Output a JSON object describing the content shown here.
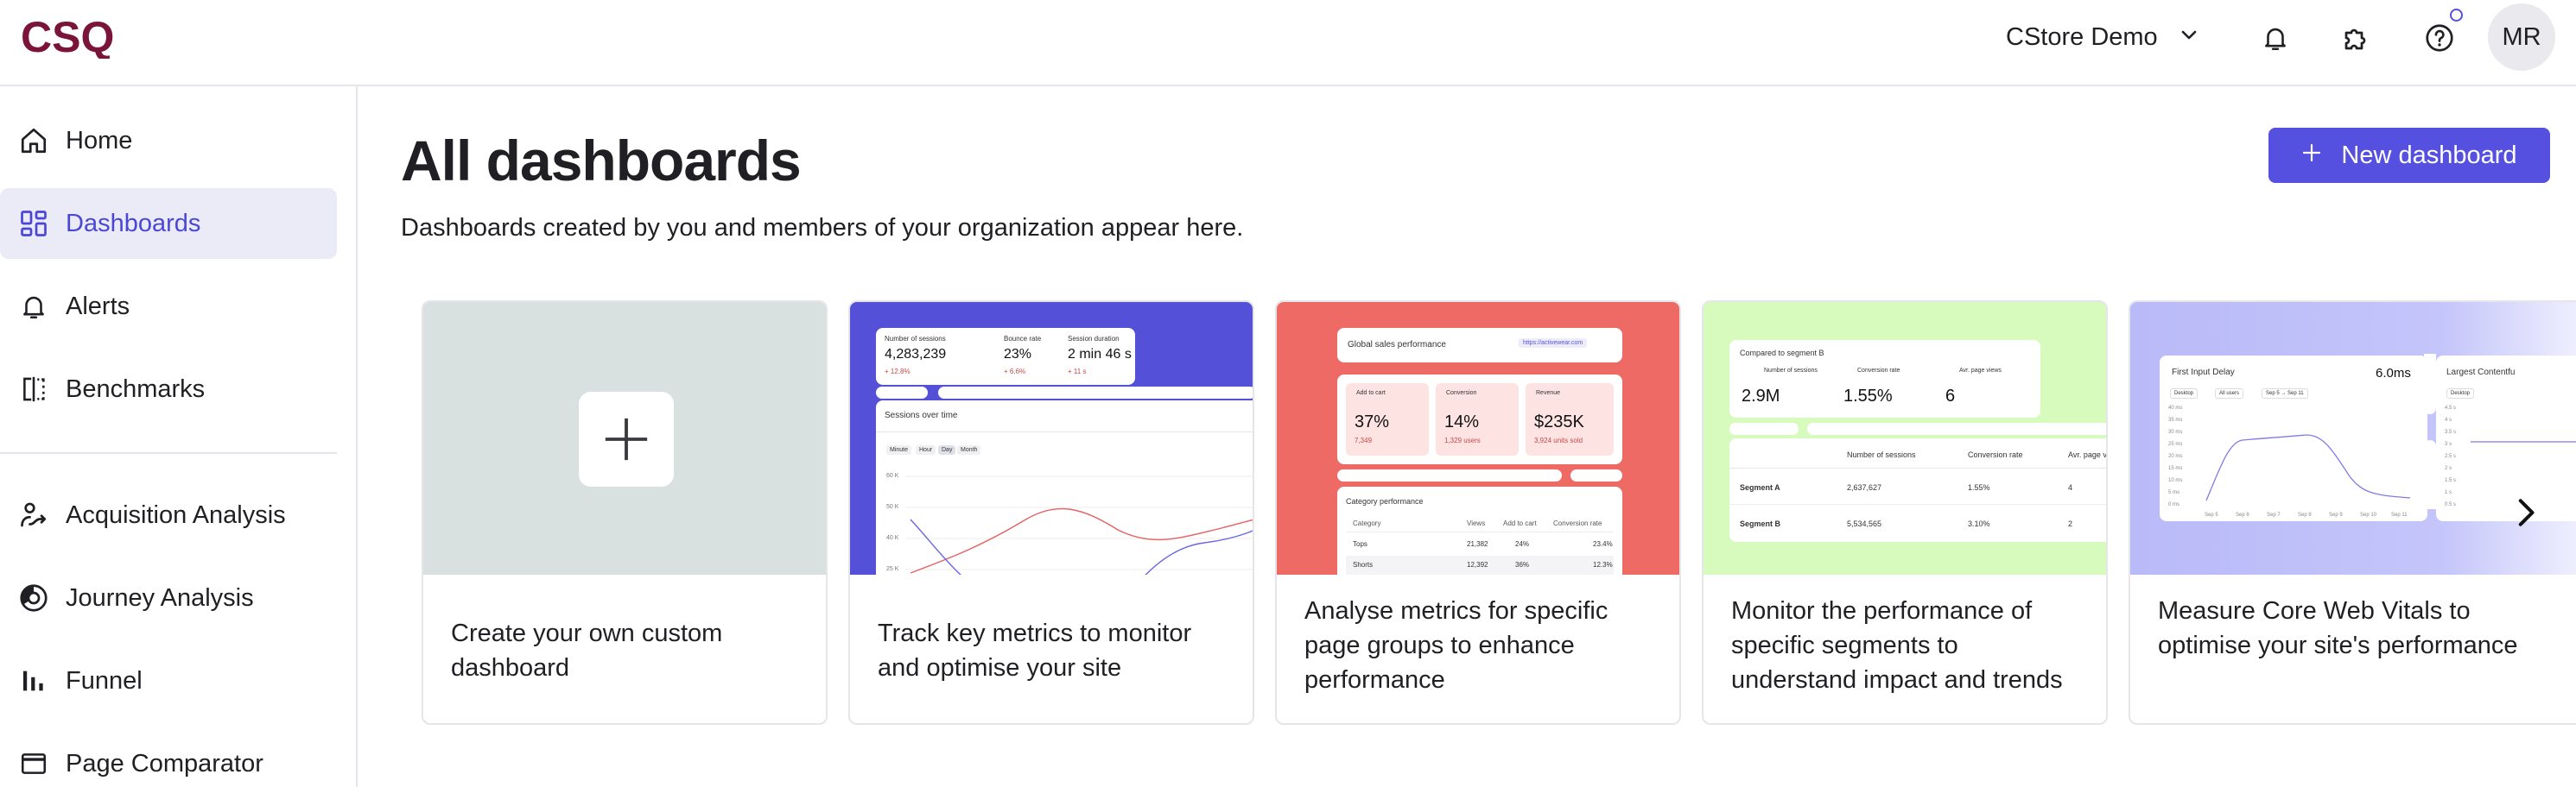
{
  "app": {
    "logo_text": "CSQ",
    "org_selector": "CStore Demo",
    "avatar_initials": "MR",
    "brand_color": "#7a1438",
    "accent_color": "#5550e0"
  },
  "topbar_icons": [
    "chevron-down-icon",
    "bell-icon",
    "puzzle-icon",
    "help-icon"
  ],
  "sidebar": {
    "items": [
      {
        "label": "Home",
        "icon": "home-icon"
      },
      {
        "label": "Dashboards",
        "icon": "dashboard-grid-icon",
        "active": true
      },
      {
        "label": "Alerts",
        "icon": "bell-icon"
      },
      {
        "label": "Benchmarks",
        "icon": "benchmark-icon"
      },
      {
        "label": "Acquisition Analysis",
        "icon": "acquisition-icon"
      },
      {
        "label": "Journey Analysis",
        "icon": "journey-icon"
      },
      {
        "label": "Funnel",
        "icon": "funnel-bars-icon"
      },
      {
        "label": "Page Comparator",
        "icon": "window-icon"
      }
    ]
  },
  "main": {
    "title": "All dashboards",
    "subtitle": "Dashboards created by you and members of your organization appear here.",
    "new_button": "New dashboard"
  },
  "cards": [
    {
      "caption": "Create your own custom dashboard",
      "preview_color": "#d9e0e0"
    },
    {
      "caption": "Track key metrics to monitor and optimise your site",
      "preview_color": "#5550d8",
      "kpis": [
        {
          "label": "Number of sessions",
          "value": "4,283,239",
          "delta": "+ 12.8%"
        },
        {
          "label": "Bounce rate",
          "value": "23%",
          "delta": "+ 6.6%"
        },
        {
          "label": "Session duration",
          "value": "2 min 46 s",
          "delta": "+ 11 s"
        }
      ],
      "chart_title": "Sessions over time",
      "granularity": [
        "Minute",
        "Hour",
        "Day",
        "Month"
      ],
      "y_ticks": [
        "60 K",
        "50 K",
        "40 K",
        "25 K"
      ]
    },
    {
      "caption": "Analyse metrics for specific page groups to enhance performance",
      "preview_color": "#ee6a64",
      "title": "Global sales performance",
      "url": "https://activewear.com",
      "kpis": [
        {
          "label": "Add to cart",
          "value": "37%",
          "sub": "7,349"
        },
        {
          "label": "Conversion",
          "value": "14%",
          "sub": "1,329 users"
        },
        {
          "label": "Revenue",
          "value": "$235K",
          "sub": "3,924 units sold"
        }
      ],
      "table_title": "Category performance",
      "table_headers": [
        "Category",
        "Views",
        "Add to cart",
        "Conversion rate"
      ],
      "table_rows": [
        [
          "Tops",
          "21,382",
          "24%",
          "23.4%"
        ],
        [
          "Shorts",
          "12,392",
          "36%",
          "12.3%"
        ]
      ]
    },
    {
      "caption": "Monitor the performance of specific segments to understand impact and trends",
      "preview_color": "#d6fbbd",
      "title": "Compared to segment B",
      "kpis": [
        {
          "label": "Number of sessions",
          "value": "2.9M"
        },
        {
          "label": "Conversion rate",
          "value": "1.55%"
        },
        {
          "label": "Avr. page views",
          "value": "6"
        }
      ],
      "table_headers": [
        "Number of sessions",
        "Conversion rate",
        "Avr. page view"
      ],
      "table_rows": [
        [
          "Segment A",
          "2,637,627",
          "1.55%",
          "4"
        ],
        [
          "Segment B",
          "5,534,565",
          "3.10%",
          "2"
        ]
      ]
    },
    {
      "caption": "Measure Core Web Vitals to optimise your site's performance",
      "preview_color": "#bbbcf8",
      "metric_title": "First Input Delay",
      "metric_value": "6.0ms",
      "filters": [
        "Desktop",
        "All users",
        "Sep 5 → Sep 11"
      ],
      "y_ticks": [
        "40 ms",
        "35 ms",
        "30 ms",
        "25 ms",
        "20 ms",
        "15 ms",
        "10 ms",
        "5 ms",
        "0 ms"
      ],
      "x_ticks": [
        "Sep 5",
        "Sep 6",
        "Sep 7",
        "Sep 8",
        "Sep 9",
        "Sep 10",
        "Sep 11"
      ],
      "second_title": "Largest Contentfu",
      "second_filter": "Desktop",
      "second_y_ticks": [
        "4.5 s",
        "4 s",
        "3.5 s",
        "3 s",
        "2.5 s",
        "2 s",
        "1.5 s",
        "1 s",
        "0.5 s"
      ]
    }
  ]
}
